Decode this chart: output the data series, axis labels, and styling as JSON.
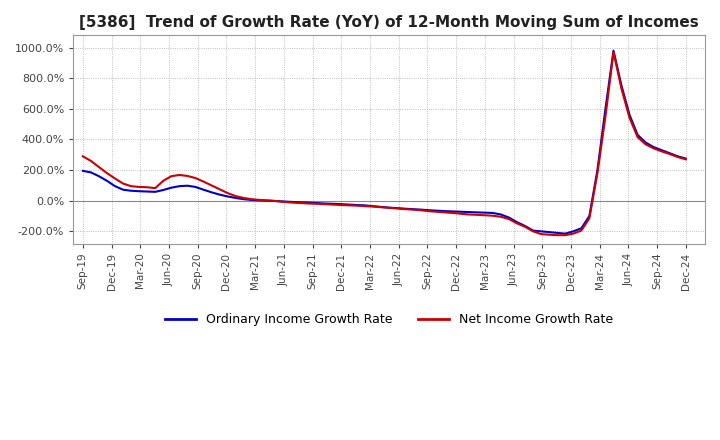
{
  "title": "[5386]  Trend of Growth Rate (YoY) of 12-Month Moving Sum of Incomes",
  "title_fontsize": 11,
  "ylim": [
    -280,
    1080
  ],
  "yticks": [
    -200,
    0,
    200,
    400,
    600,
    800,
    1000
  ],
  "background_color": "#ffffff",
  "grid_color": "#aaaaaa",
  "legend_labels": [
    "Ordinary Income Growth Rate",
    "Net Income Growth Rate"
  ],
  "legend_colors": [
    "#0000cc",
    "#cc0000"
  ],
  "x_tick_positions": [
    0,
    3,
    6,
    9,
    12,
    15,
    18,
    21,
    24,
    27,
    30,
    33,
    36,
    39,
    42,
    45,
    48,
    51,
    54,
    57,
    60,
    63
  ],
  "x_tick_labels": [
    "Sep-19",
    "Dec-19",
    "Mar-20",
    "Jun-20",
    "Sep-20",
    "Dec-20",
    "Mar-21",
    "Jun-21",
    "Sep-21",
    "Dec-21",
    "Mar-22",
    "Jun-22",
    "Sep-22",
    "Dec-22",
    "Mar-23",
    "Jun-23",
    "Sep-23",
    "Dec-23",
    "Mar-24",
    "Jun-24",
    "Sep-24",
    "Dec-24"
  ],
  "ordinary_income": [
    195,
    185,
    160,
    130,
    95,
    72,
    65,
    62,
    60,
    58,
    70,
    85,
    95,
    98,
    90,
    72,
    55,
    40,
    28,
    18,
    10,
    5,
    2,
    0,
    -2,
    -5,
    -8,
    -10,
    -12,
    -15,
    -18,
    -20,
    -22,
    -25,
    -28,
    -30,
    -35,
    -40,
    -45,
    -48,
    -52,
    -55,
    -58,
    -62,
    -65,
    -68,
    -70,
    -72,
    -74,
    -76,
    -78,
    -80,
    -90,
    -110,
    -140,
    -165,
    -195,
    -200,
    -205,
    -210,
    -215,
    -200,
    -180,
    -100,
    200,
    600,
    980,
    750,
    560,
    430,
    380,
    350,
    330,
    310,
    290,
    275
  ],
  "net_income": [
    290,
    260,
    220,
    180,
    145,
    112,
    95,
    90,
    88,
    82,
    130,
    160,
    168,
    162,
    148,
    125,
    100,
    75,
    50,
    30,
    18,
    10,
    5,
    2,
    -2,
    -8,
    -12,
    -15,
    -18,
    -20,
    -22,
    -25,
    -28,
    -30,
    -32,
    -35,
    -38,
    -42,
    -46,
    -50,
    -55,
    -58,
    -62,
    -68,
    -72,
    -76,
    -80,
    -85,
    -90,
    -92,
    -95,
    -98,
    -105,
    -120,
    -148,
    -170,
    -200,
    -218,
    -222,
    -225,
    -225,
    -215,
    -195,
    -115,
    180,
    550,
    970,
    730,
    540,
    415,
    368,
    342,
    322,
    305,
    285,
    270
  ],
  "n_months": 76
}
